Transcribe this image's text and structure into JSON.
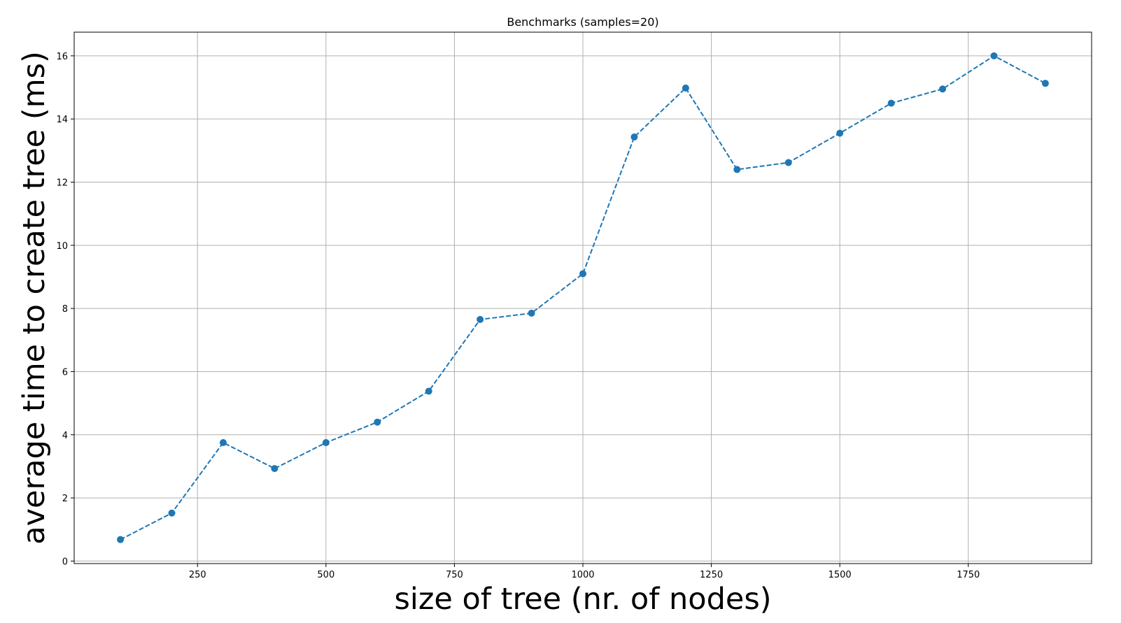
{
  "chart_data": {
    "type": "line",
    "title": "Benchmarks (samples=20)",
    "xlabel": "size of tree (nr. of nodes)",
    "ylabel": "average time to create tree (ms)",
    "xlim": [
      10,
      1990
    ],
    "ylim": [
      -0.08,
      16.75
    ],
    "xticks": [
      250,
      500,
      750,
      1000,
      1250,
      1500,
      1750
    ],
    "yticks": [
      0,
      2,
      4,
      6,
      8,
      10,
      12,
      14,
      16
    ],
    "grid": true,
    "series": [
      {
        "color": "#1f77b4",
        "line_style": "dashed",
        "marker": "circle",
        "x": [
          100,
          200,
          300,
          400,
          500,
          600,
          700,
          800,
          900,
          1000,
          1100,
          1200,
          1300,
          1400,
          1500,
          1600,
          1700,
          1800,
          1900
        ],
        "y": [
          0.68,
          1.52,
          3.75,
          2.93,
          3.75,
          4.4,
          5.38,
          7.65,
          7.85,
          9.1,
          13.43,
          14.98,
          12.4,
          12.62,
          13.55,
          14.5,
          14.95,
          16.0,
          15.13
        ]
      }
    ]
  }
}
